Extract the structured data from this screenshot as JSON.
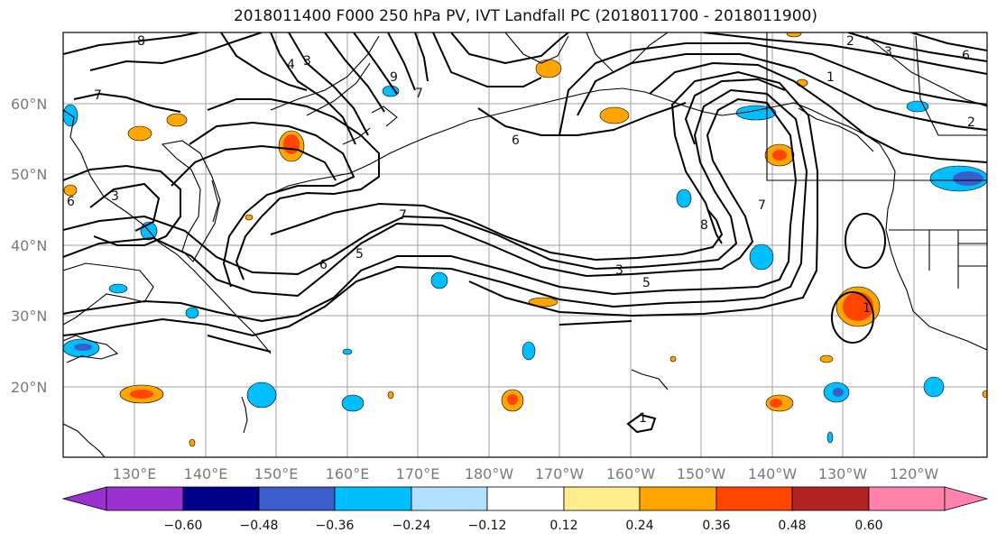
{
  "title": "2018011400 F000 250 hPa PV, IVT Landfall PC (2018011700 - 2018011900)",
  "lat_labels": [
    "60°N",
    "50°N",
    "40°N",
    "30°N",
    "20°N"
  ],
  "lon_labels": [
    "130°E",
    "140°E",
    "150°E",
    "160°E",
    "170°E",
    "180°W",
    "170°W",
    "160°W",
    "150°W",
    "140°W",
    "130°W",
    "120°W"
  ],
  "colorbar": {
    "ticks": [
      "−0.60",
      "−0.48",
      "−0.36",
      "−0.24",
      "−0.12",
      "0.12",
      "0.24",
      "0.36",
      "0.48",
      "0.60"
    ],
    "colors": [
      "#9b30d0",
      "#00008b",
      "#3a5fcd",
      "#00bfff",
      "#b0e2ff",
      "#ffffff",
      "#ffec8b",
      "#ffa500",
      "#ff4500",
      "#b22222",
      "#ff82ab"
    ]
  },
  "contour_labels": [
    "8",
    "7",
    "3",
    "4",
    "3",
    "9",
    "6",
    "6",
    "7",
    "8",
    "7",
    "6",
    "5",
    "3",
    "2",
    "1",
    "7",
    "3",
    "2",
    "6",
    "1",
    "1",
    "5"
  ],
  "colors": {
    "frame": "#000000",
    "grid": "#a0a0a0",
    "contour": "#000000"
  }
}
